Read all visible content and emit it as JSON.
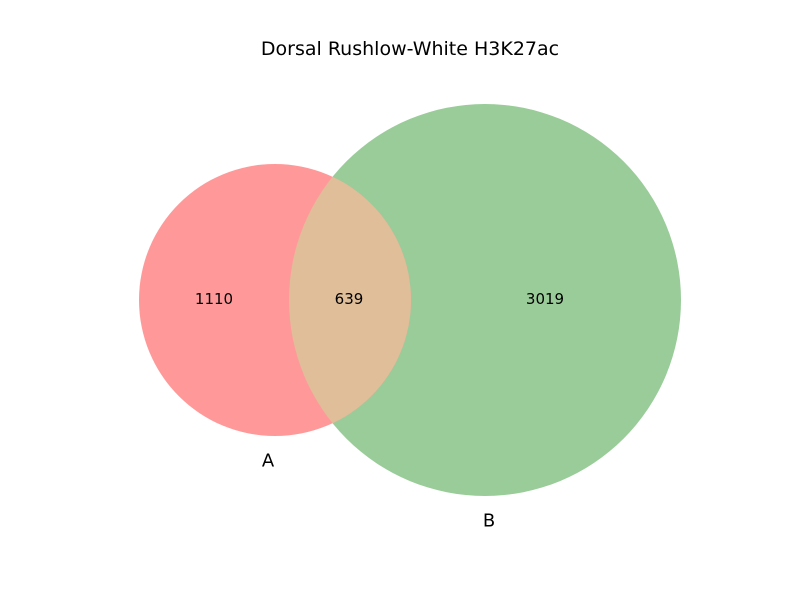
{
  "title": "Dorsal Rushlow-White H3K27ac",
  "sets": [
    {
      "label": "A",
      "color": "#ff9999"
    },
    {
      "label": "B",
      "color": "#99cc99"
    }
  ],
  "intersection_color": "#dfbe99",
  "counts": {
    "only_a": "1110",
    "a_and_b": "639",
    "only_b": "3019"
  }
}
